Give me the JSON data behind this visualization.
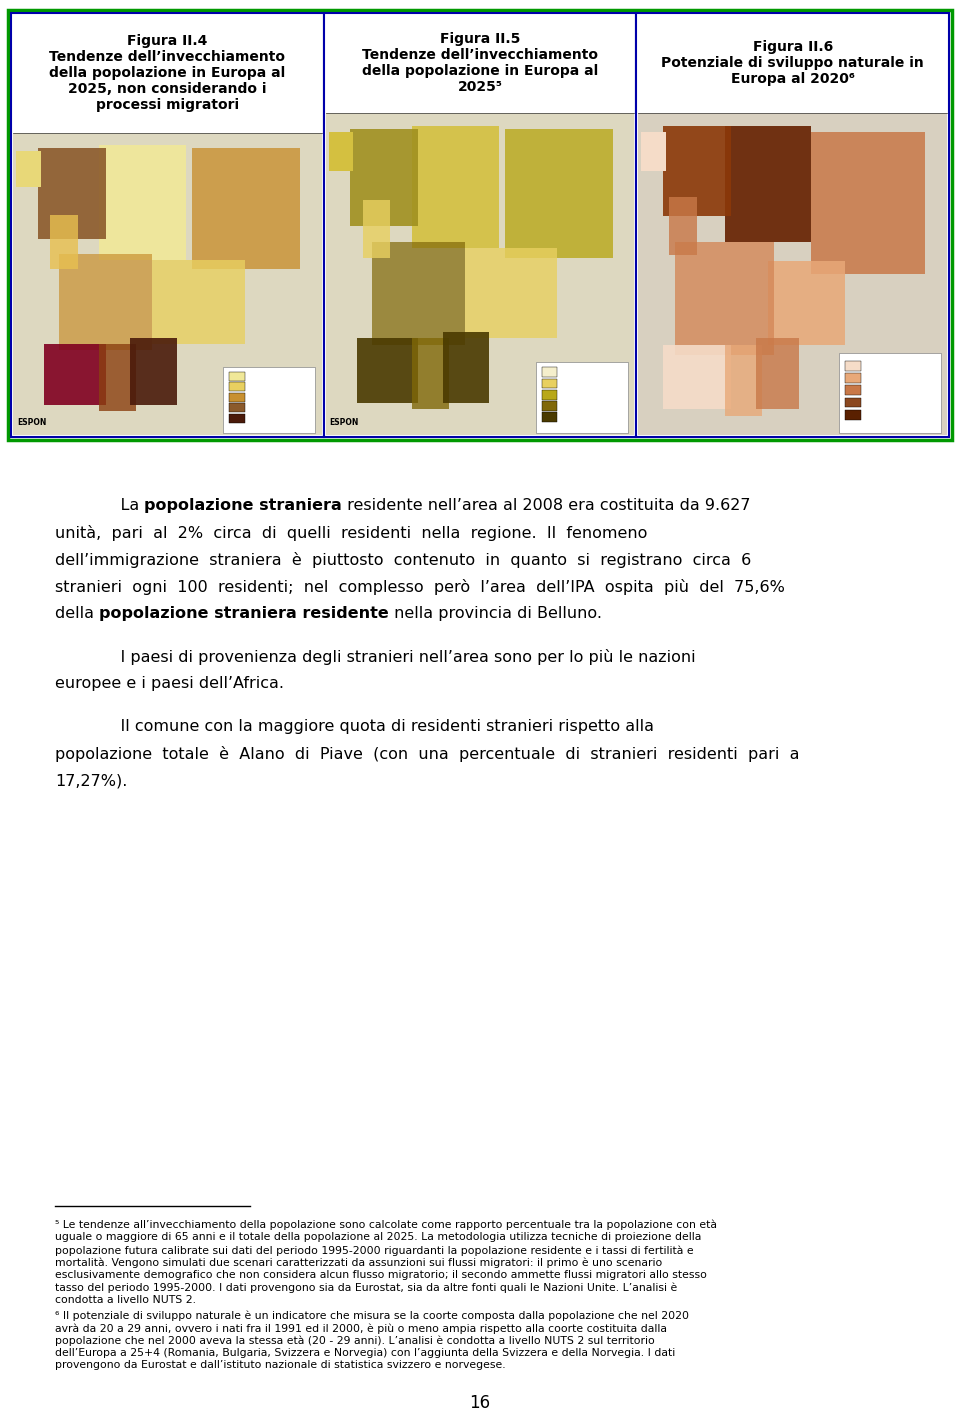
{
  "bg_color": "#ffffff",
  "border_color_outer": "#009900",
  "border_color_panel": "#0000cc",
  "fig_titles": [
    "Figura II.4\nTendenze dell’invecchiamento\ndella popolazione in Europa al\n2025, non considerando i\nprocessi migratori",
    "Figura II.5\nTendenze dell’invecchiamento\ndella popolazione in Europa al\n2025⁵",
    "Figura II.6\nPotenziale di sviluppo naturale in\nEuropa al 2020⁶"
  ],
  "text_fontsize": 11.5,
  "title_fontsize": 10,
  "footnote_fontsize": 7.8,
  "page_fontsize": 12,
  "main_text_color": "#000000",
  "para1_line1_indent": "    La ",
  "para1_line1_bold": "popolazione straniera",
  "para1_line1_rest": " residente nell’area al 2008 era costituita da 9.627",
  "para1_lines_normal": [
    "unità,  pari  al  2%  circa  di  quelli  residenti  nella  regione.  Il  fenomeno",
    "dell’immigrazione  straniera  è  piuttosto  contenuto  in  quanto  si  registrano  circa  6",
    "stranieri  ogni  100  residenti;  nel  complesso  però  l’area  dell’IPA  ospita  più  del  75,6%"
  ],
  "para1_last_prefix": "della ",
  "para1_last_bold": "popolazione straniera residente",
  "para1_last_suffix": " nella provincia di Belluno.",
  "para2_line1": "    I paesi di provenienza degli stranieri nell’area sono per lo più le nazioni",
  "para2_line2": "europee e i paesi dell’Africa.",
  "para3_line1": "    Il comune con la maggiore quota di residenti stranieri rispetto alla",
  "para3_line2": "popolazione  totale  è  Alano  di  Piave  (con  una  percentuale  di  stranieri  residenti  pari  a",
  "para3_line3": "17,27%).",
  "footnote5_lines": [
    "⁵ Le tendenze all’invecchiamento della popolazione sono calcolate come rapporto percentuale tra la popolazione con età",
    "uguale o maggiore di 65 anni e il totale della popolazione al 2025. La metodologia utilizza tecniche di proiezione della",
    "popolazione futura calibrate sui dati del periodo 1995-2000 riguardanti la popolazione residente e i tassi di fertilità e",
    "mortalità. Vengono simulati due scenari caratterizzati da assunzioni sui flussi migratori: il primo è uno scenario",
    "esclusivamente demografico che non considera alcun flusso migratorio; il secondo ammette flussi migratori allo stesso",
    "tasso del periodo 1995-2000. I dati provengono sia da Eurostat, sia da altre fonti quali le Nazioni Unite. L’analisi è",
    "condotta a livello NUTS 2."
  ],
  "footnote6_lines": [
    "⁶ Il potenziale di sviluppo naturale è un indicatore che misura se la coorte composta dalla popolazione che nel 2020",
    "avrà da 20 a 29 anni, ovvero i nati fra il 1991 ed il 2000, è più o meno ampia rispetto alla coorte costituita dalla",
    "popolazione che nel 2000 aveva la stessa età (20 - 29 anni). L’analisi è condotta a livello NUTS 2 sul territorio",
    "dell’Europa a 25+4 (Romania, Bulgaria, Svizzera e Norvegia) con l’aggiunta della Svizzera e della Norvegia. I dati",
    "provengono da Eurostat e dall’istituto nazionale di statistica svizzero e norvegese."
  ],
  "page_number": "16",
  "map1_bg": "#c8c4b0",
  "map2_bg": "#c8c4b0",
  "map3_bg": "#c8c4a0",
  "map1_colors": [
    "#f5efcc",
    "#e8d060",
    "#c8982a",
    "#8b5a2b",
    "#4a1a0a",
    "#800020"
  ],
  "map2_colors": [
    "#f5efcc",
    "#e8d060",
    "#b8a818",
    "#806808",
    "#4a3a00"
  ],
  "map3_colors": [
    "#f5dcc8",
    "#e8a878",
    "#c87848",
    "#8b4820",
    "#5a2000"
  ]
}
